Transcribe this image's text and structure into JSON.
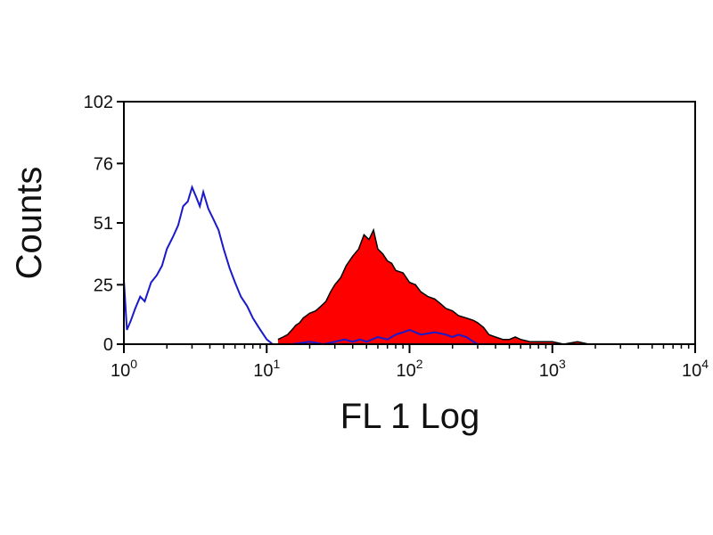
{
  "chart_data": {
    "type": "area",
    "xlabel": "FL 1 Log",
    "ylabel": "Counts",
    "x_scale": "log",
    "xlim": [
      1,
      10000
    ],
    "ylim": [
      0,
      102
    ],
    "x_ticks": [
      {
        "value": 1,
        "base": "10",
        "exp": "0"
      },
      {
        "value": 10,
        "base": "10",
        "exp": "1"
      },
      {
        "value": 100,
        "base": "10",
        "exp": "2"
      },
      {
        "value": 1000,
        "base": "10",
        "exp": "3"
      },
      {
        "value": 10000,
        "base": "10",
        "exp": "4"
      }
    ],
    "y_ticks": [
      {
        "value": 0,
        "label": "0"
      },
      {
        "value": 25,
        "label": "25"
      },
      {
        "value": 51,
        "label": "51"
      },
      {
        "value": 76,
        "label": "76"
      },
      {
        "value": 102,
        "label": "102"
      }
    ],
    "grid": false,
    "series": [
      {
        "style": "outline",
        "color": "#1a1acc",
        "x": [
          1.0,
          1.05,
          1.12,
          1.2,
          1.3,
          1.4,
          1.55,
          1.7,
          1.85,
          2.0,
          2.2,
          2.4,
          2.6,
          2.8,
          3.0,
          3.2,
          3.4,
          3.6,
          3.9,
          4.2,
          4.6,
          5.0,
          5.5,
          6.0,
          6.6,
          7.3,
          8.0,
          8.8,
          9.5,
          10.0,
          10.5,
          11.0
        ],
        "values": [
          27,
          6,
          10,
          15,
          20,
          18,
          26,
          29,
          33,
          40,
          45,
          50,
          58,
          60,
          66,
          62,
          58,
          64,
          57,
          53,
          48,
          40,
          32,
          26,
          20,
          16,
          11,
          7,
          4,
          2,
          1,
          0
        ]
      },
      {
        "style": "filled",
        "color": "#ff0000",
        "outline_color": "#000000",
        "x": [
          12,
          13,
          14,
          15,
          16,
          17,
          18,
          20,
          22,
          24,
          26,
          28,
          30,
          33,
          36,
          40,
          44,
          48,
          52,
          56,
          60,
          65,
          70,
          75,
          80,
          90,
          100,
          110,
          120,
          135,
          150,
          165,
          180,
          200,
          220,
          250,
          280,
          300,
          330,
          360,
          400,
          450,
          500,
          550,
          600,
          700,
          800,
          900,
          1000,
          1200,
          1500,
          1800,
          2000
        ],
        "values": [
          2,
          3,
          4,
          6,
          8,
          9,
          11,
          13,
          14,
          16,
          18,
          22,
          25,
          28,
          33,
          37,
          40,
          46,
          44,
          48,
          40,
          38,
          35,
          34,
          31,
          30,
          26,
          25,
          22,
          20,
          19,
          17,
          15,
          14,
          12,
          11,
          10,
          9,
          7,
          4,
          3,
          2,
          2,
          3,
          2,
          1,
          1,
          1,
          1,
          0,
          1,
          0,
          0
        ]
      },
      {
        "style": "outline",
        "color": "#1a1acc",
        "x": [
          15,
          20,
          25,
          30,
          35,
          40,
          45,
          50,
          60,
          70,
          80,
          90,
          100,
          110,
          120,
          150,
          180,
          200,
          220,
          250,
          280,
          300
        ],
        "values": [
          0,
          1,
          0,
          1,
          2,
          1,
          2,
          1,
          3,
          2,
          4,
          5,
          6,
          5,
          4,
          5,
          4,
          3,
          4,
          3,
          1,
          0
        ]
      }
    ]
  }
}
